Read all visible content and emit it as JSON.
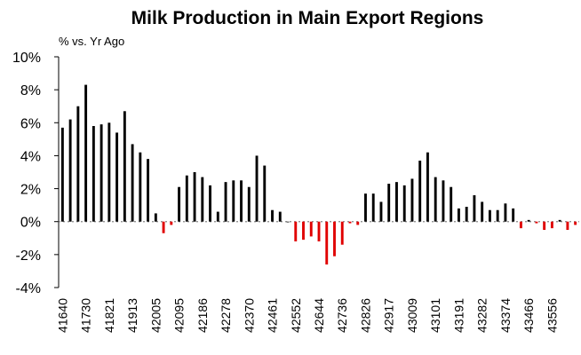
{
  "chart_data": {
    "type": "bar",
    "title": "Milk Production in Main Export Regions",
    "ylabel": "% vs. Yr Ago",
    "xlabel": "",
    "ylim": [
      -4,
      10
    ],
    "yticks": [
      -4,
      -2,
      0,
      2,
      4,
      6,
      8,
      10
    ],
    "ytick_labels": [
      "-4%",
      "-2%",
      "0%",
      "2%",
      "4%",
      "6%",
      "8%",
      "10%"
    ],
    "x_start": 41640,
    "x_step_days_approx": 30.4,
    "xtick_labels": [
      "41640",
      "41730",
      "41821",
      "41913",
      "42005",
      "42095",
      "42186",
      "42278",
      "42370",
      "42461",
      "42552",
      "42644",
      "42736",
      "42826",
      "42917",
      "43009",
      "43101",
      "43191",
      "43282",
      "43374",
      "43466",
      "43556"
    ],
    "xtick_every": 3,
    "colors": {
      "positive": "#000000",
      "negative": "#e00000",
      "zero_line": "#888888"
    },
    "grid": false,
    "values": [
      5.7,
      6.2,
      7.0,
      8.3,
      5.8,
      5.9,
      6.0,
      5.4,
      6.7,
      4.7,
      4.2,
      3.8,
      0.5,
      -0.7,
      -0.2,
      2.1,
      2.8,
      3.0,
      2.7,
      2.2,
      0.6,
      2.4,
      2.5,
      2.5,
      2.1,
      4.0,
      3.4,
      0.7,
      0.6,
      0.0,
      -1.2,
      -1.1,
      -0.9,
      -1.2,
      -2.6,
      -2.1,
      -1.4,
      -0.1,
      -0.2,
      1.7,
      1.7,
      1.2,
      2.3,
      2.4,
      2.2,
      2.6,
      3.7,
      4.2,
      2.7,
      2.5,
      2.1,
      0.8,
      0.9,
      1.6,
      1.2,
      0.7,
      0.7,
      1.1,
      0.8,
      -0.4,
      0.1,
      -0.1,
      -0.5,
      -0.4,
      0.1,
      -0.5,
      -0.2
    ]
  }
}
